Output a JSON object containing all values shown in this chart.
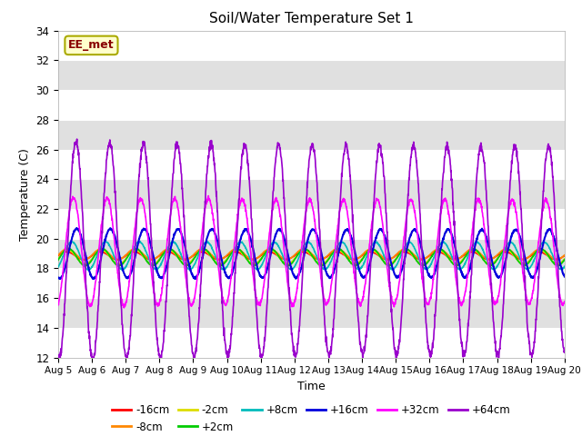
{
  "title": "Soil/Water Temperature Set 1",
  "xlabel": "Time",
  "ylabel": "Temperature (C)",
  "ylim": [
    12,
    34
  ],
  "xlim": [
    0,
    15
  ],
  "yticks": [
    12,
    14,
    16,
    18,
    20,
    22,
    24,
    26,
    28,
    30,
    32,
    34
  ],
  "xtick_labels": [
    "Aug 5",
    "Aug 6",
    "Aug 7",
    "Aug 8",
    "Aug 9",
    "Aug 10",
    "Aug 11",
    "Aug 12",
    "Aug 13",
    "Aug 14",
    "Aug 15",
    "Aug 16",
    "Aug 17",
    "Aug 18",
    "Aug 19",
    "Aug 20"
  ],
  "series": [
    {
      "label": "-16cm",
      "color": "#ff0000",
      "amplitude": 0.25,
      "baseline": 18.85,
      "phase": 0.0,
      "lw": 1.2
    },
    {
      "label": "-8cm",
      "color": "#ff8800",
      "amplitude": 0.35,
      "baseline": 18.95,
      "phase": 0.05,
      "lw": 1.2
    },
    {
      "label": "-2cm",
      "color": "#dddd00",
      "amplitude": 0.45,
      "baseline": 18.75,
      "phase": 0.08,
      "lw": 1.2
    },
    {
      "label": "+2cm",
      "color": "#00cc00",
      "amplitude": 0.55,
      "baseline": 18.75,
      "phase": 0.1,
      "lw": 1.2
    },
    {
      "label": "+8cm",
      "color": "#00bbbb",
      "amplitude": 0.9,
      "baseline": 18.85,
      "phase": 0.3,
      "lw": 1.2
    },
    {
      "label": "+16cm",
      "color": "#0000dd",
      "amplitude": 1.6,
      "baseline": 19.0,
      "phase": 0.6,
      "lw": 1.5
    },
    {
      "label": "+32cm",
      "color": "#ff00ff",
      "amplitude": 3.5,
      "baseline": 19.1,
      "phase": 0.4,
      "lw": 1.2
    },
    {
      "label": "+64cm",
      "color": "#9900cc",
      "amplitude": 7.0,
      "baseline": 19.2,
      "phase": 0.55,
      "lw": 1.2
    }
  ],
  "annotation_text": "EE_met",
  "band_colors": [
    "#ffffff",
    "#e0e0e0"
  ],
  "bg_color": "#f0f0f0"
}
